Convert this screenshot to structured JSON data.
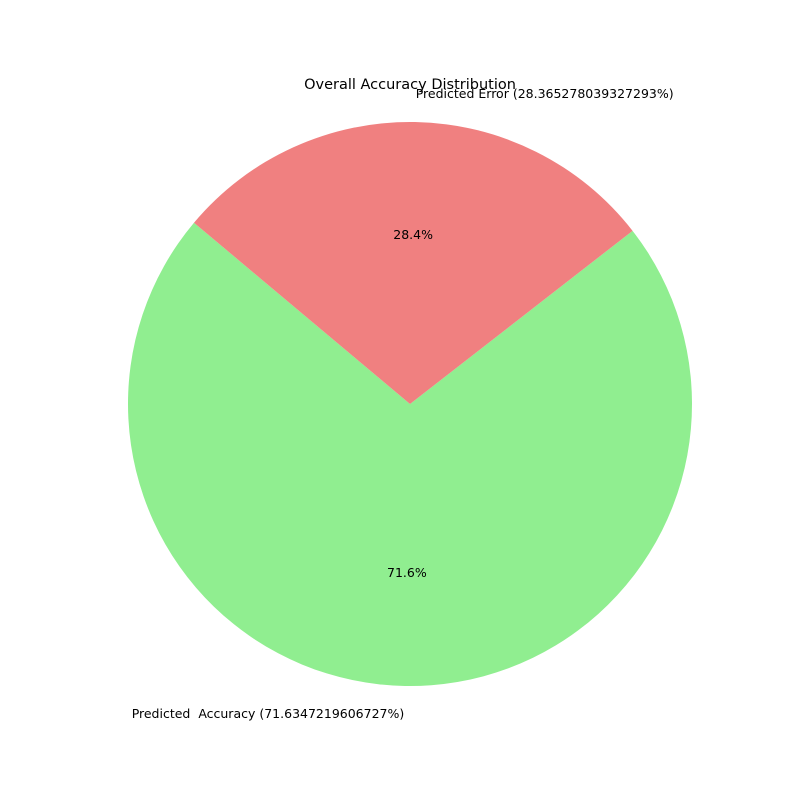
{
  "chart_data": {
    "type": "pie",
    "title": "Overall Accuracy Distribution",
    "labels": [
      "Predicted  Accuracy (71.6347219606727%)",
      "Predicted Error (28.365278039327293%)"
    ],
    "values": [
      71.6347219606727,
      28.365278039327293
    ],
    "autopct": [
      "71.6%",
      "28.4%"
    ],
    "colors": [
      "#90ee90",
      "#f08080"
    ],
    "start_angle_deg": 140,
    "legend": "none"
  }
}
